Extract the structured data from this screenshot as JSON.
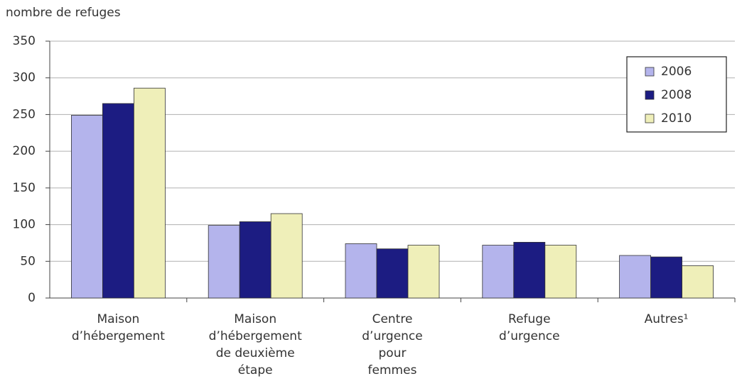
{
  "chart_data": {
    "type": "bar",
    "y_axis_label": "nombre de refuges",
    "categories": [
      [
        "Maison",
        "d’hébergement"
      ],
      [
        "Maison",
        "d’hébergement",
        "de deuxième",
        "étape"
      ],
      [
        "Centre",
        "d’urgence",
        "pour",
        "femmes"
      ],
      [
        "Refuge",
        "d’urgence"
      ],
      [
        "Autres¹"
      ]
    ],
    "series": [
      {
        "name": "2006",
        "color": "#b4b4ec",
        "values": [
          249,
          99,
          74,
          72,
          58
        ]
      },
      {
        "name": "2008",
        "color": "#1c1c82",
        "values": [
          265,
          104,
          67,
          76,
          56
        ]
      },
      {
        "name": "2010",
        "color": "#efefb9",
        "values": [
          286,
          115,
          72,
          72,
          44
        ]
      }
    ],
    "ylim": [
      0,
      350
    ],
    "yticks": [
      0,
      50,
      100,
      150,
      200,
      250,
      300,
      350
    ],
    "grid": true,
    "legend": "top-right"
  }
}
